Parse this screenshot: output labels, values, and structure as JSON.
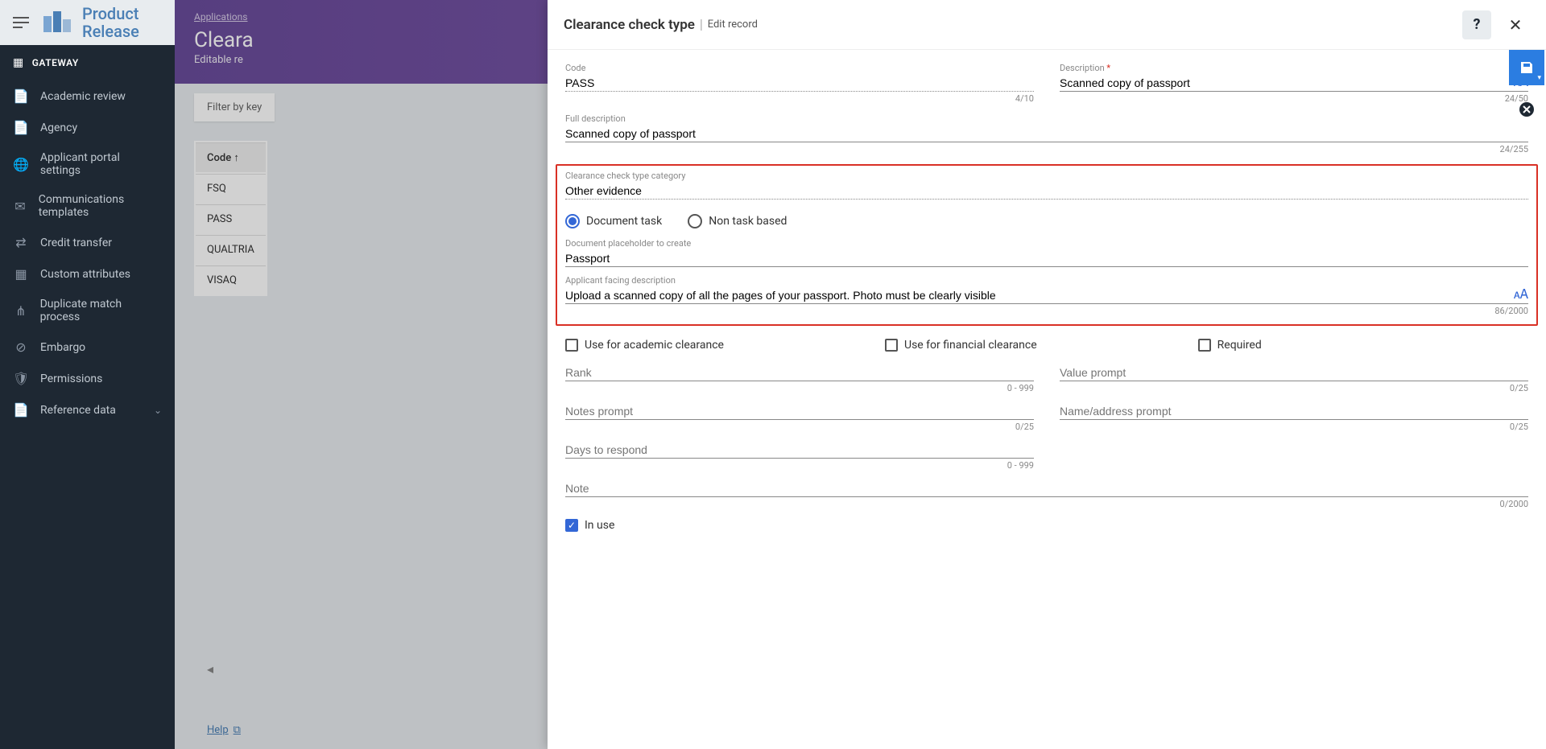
{
  "brand": {
    "line1": "Product",
    "line2": "Release"
  },
  "sidebar": {
    "section": "GATEWAY",
    "items": [
      {
        "label": "Academic review",
        "icon": "📄"
      },
      {
        "label": "Agency",
        "icon": "📄"
      },
      {
        "label": "Applicant portal settings",
        "icon": "🌐"
      },
      {
        "label": "Communications templates",
        "icon": "✉"
      },
      {
        "label": "Credit transfer",
        "icon": "⇄"
      },
      {
        "label": "Custom attributes",
        "icon": "▦"
      },
      {
        "label": "Duplicate match process",
        "icon": "⋔"
      },
      {
        "label": "Embargo",
        "icon": "⊘"
      },
      {
        "label": "Permissions",
        "icon": "🛡"
      },
      {
        "label": "Reference data",
        "icon": "📄",
        "expandable": true
      }
    ]
  },
  "bg": {
    "crumb": "Applications",
    "title": "Cleara",
    "subtitle": "Editable re",
    "filter_placeholder": "Filter by key",
    "codes": [
      "FSQ",
      "PASS",
      "QUALTRIA",
      "VISAQ"
    ],
    "code_header": "Code ↑"
  },
  "panel": {
    "title": "Clearance check type",
    "subtitle": "Edit record"
  },
  "form": {
    "code": {
      "label": "Code",
      "value": "PASS",
      "counter": "4/10"
    },
    "description": {
      "label": "Description",
      "required": true,
      "value": "Scanned copy of passport",
      "counter": "24/50"
    },
    "full_description": {
      "label": "Full description",
      "value": "Scanned copy of passport",
      "counter": "24/255"
    },
    "category": {
      "label": "Clearance check type category",
      "value": "Other evidence"
    },
    "task_type": {
      "document_task": "Document task",
      "non_task": "Non task based"
    },
    "placeholder": {
      "label": "Document placeholder to create",
      "value": "Passport"
    },
    "applicant_desc": {
      "label": "Applicant facing description",
      "value": "Upload a scanned copy of all the pages of your passport. Photo must be clearly visible",
      "counter": "86/2000"
    },
    "checks": {
      "academic": "Use for academic clearance",
      "financial": "Use for financial clearance",
      "required": "Required"
    },
    "rank": {
      "label": "Rank",
      "counter": "0 - 999"
    },
    "value_prompt": {
      "label": "Value prompt",
      "counter": "0/25"
    },
    "notes_prompt": {
      "label": "Notes prompt",
      "counter": "0/25"
    },
    "name_addr_prompt": {
      "label": "Name/address prompt",
      "counter": "0/25"
    },
    "days_respond": {
      "label": "Days to respond",
      "counter": "0 - 999"
    },
    "note": {
      "label": "Note",
      "counter": "0/2000"
    },
    "in_use": {
      "label": "In use",
      "checked": true
    }
  },
  "help_link": "Help"
}
